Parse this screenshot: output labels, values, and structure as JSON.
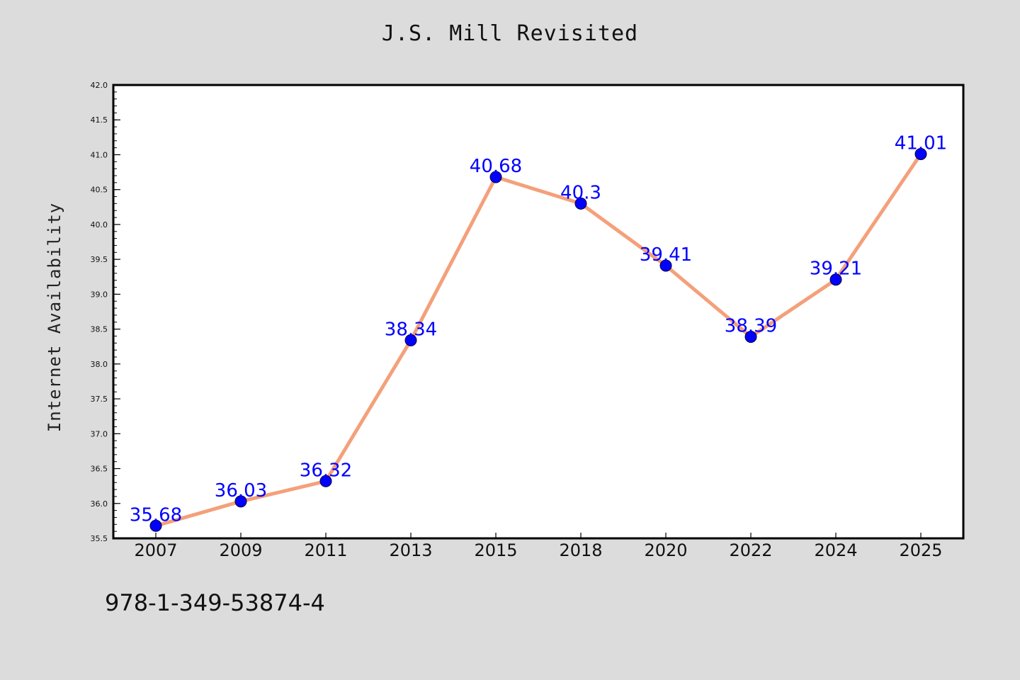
{
  "chart_data": {
    "type": "line",
    "title": "J.S. Mill Revisited",
    "xlabel": "",
    "ylabel": "Internet Availability",
    "categories": [
      "2007",
      "2009",
      "2011",
      "2013",
      "2015",
      "2018",
      "2020",
      "2022",
      "2024",
      "2025"
    ],
    "series": [
      {
        "values": [
          35.68,
          36.03,
          36.32,
          38.34,
          40.68,
          40.3,
          39.41,
          38.39,
          39.21,
          41.01
        ],
        "point_labels": [
          "35.68",
          "36.03",
          "36.32",
          "38.34",
          "40.68",
          "40.3",
          "39.41",
          "38.39",
          "39.21",
          "41.01"
        ]
      }
    ],
    "ylim": [
      35.5,
      42.0
    ],
    "yticks": [
      "35.5",
      "36.0",
      "36.5",
      "37.0",
      "37.5",
      "38.0",
      "38.5",
      "39.0",
      "39.5",
      "40.0",
      "40.5",
      "41.0",
      "41.5",
      "42.0"
    ],
    "grid": false,
    "legend": "none",
    "colors": {
      "line": "#f4a07a",
      "marker": "#0000ff",
      "marker_edge": "#000033",
      "label": "#0000ff",
      "background": "#dcdcdc",
      "plot_background": "#ffffff"
    }
  },
  "footnote": "978-1-349-53874-4"
}
